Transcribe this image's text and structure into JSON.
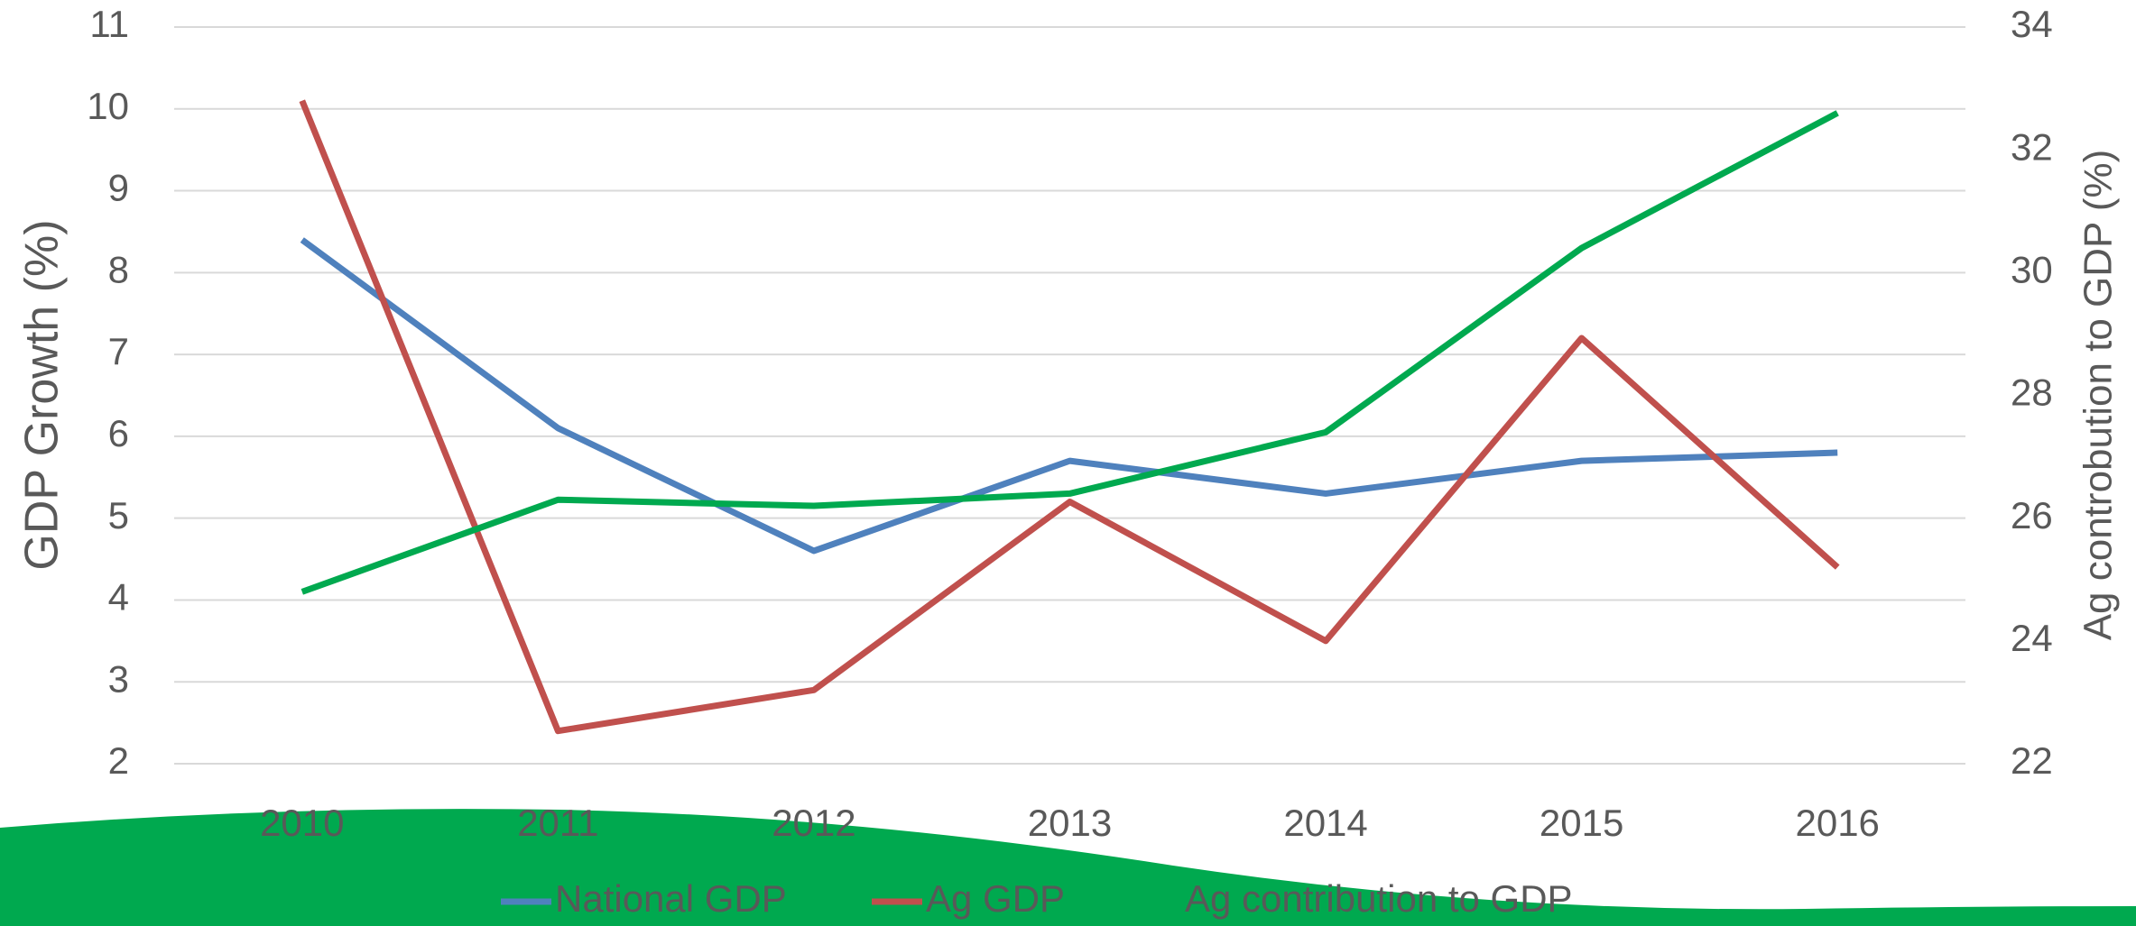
{
  "chart_data": {
    "type": "line",
    "categories": [
      "2010",
      "2011",
      "2012",
      "2013",
      "2014",
      "2015",
      "2016"
    ],
    "y_label": "GDP Growth (%)",
    "y2_label": "Ag controbution to GDP (%)",
    "ylim": [
      2,
      11
    ],
    "yticks": [
      2,
      3,
      4,
      5,
      6,
      7,
      8,
      9,
      10,
      11
    ],
    "y2lim": [
      22,
      34
    ],
    "y2ticks": [
      22,
      24,
      26,
      28,
      30,
      32,
      34
    ],
    "grid": true,
    "legend": "bottom",
    "series": [
      {
        "name": "National GDP",
        "color": "#4f81bd",
        "values": [
          8.4,
          6.1,
          4.6,
          5.7,
          5.3,
          5.7,
          5.8
        ]
      },
      {
        "name": "Ag GDP",
        "color": "#c0504d",
        "values": [
          10.1,
          2.4,
          2.9,
          5.2,
          3.5,
          7.2,
          4.4
        ]
      },
      {
        "name": "Ag contribution to GDP",
        "color": "#00a94f",
        "axis": "y2",
        "values": [
          24.8,
          26.3,
          26.2,
          26.4,
          27.4,
          30.4,
          32.6
        ]
      }
    ]
  }
}
